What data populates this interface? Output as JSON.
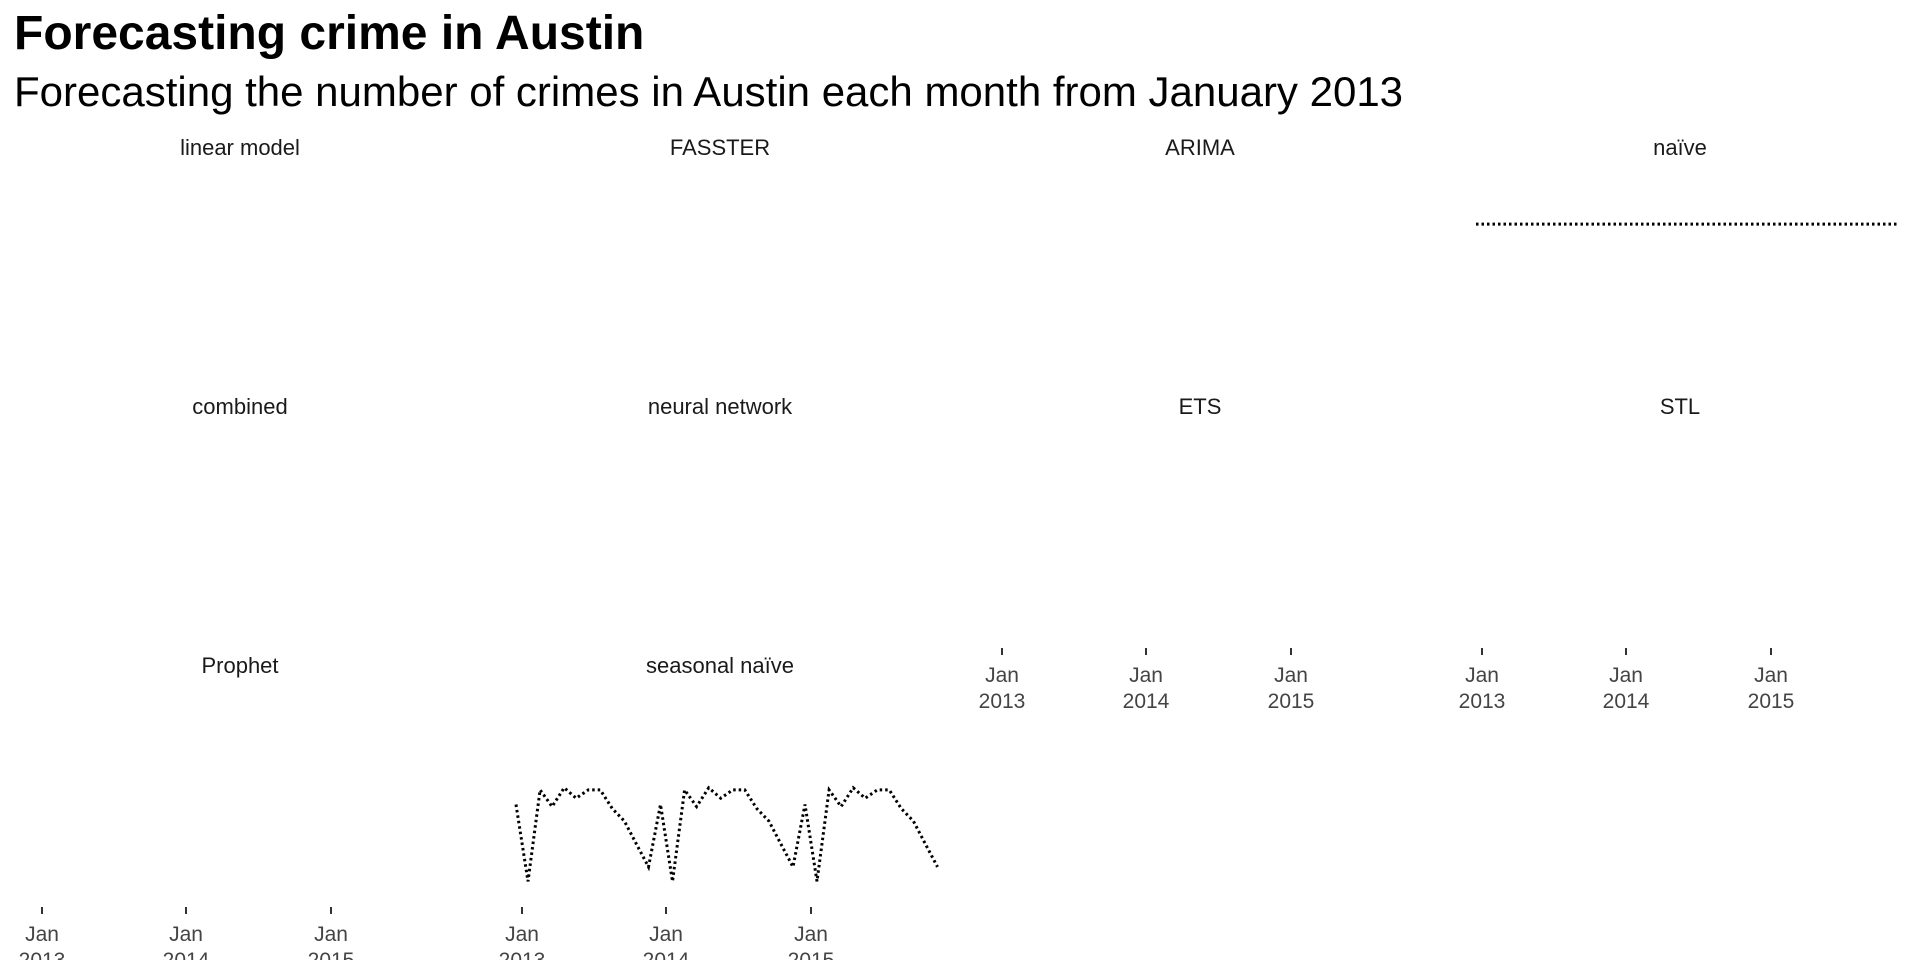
{
  "chart_data": {
    "type": "line",
    "title": "Forecasting crime in Austin",
    "subtitle": "Forecasting the number of crimes in Austin each month from January 2013",
    "xlabel": "",
    "ylabel": "",
    "x_tick_labels": [
      {
        "line1": "Jan",
        "line2": "2013"
      },
      {
        "line1": "Jan",
        "line2": "2014"
      },
      {
        "line1": "Jan",
        "line2": "2015"
      }
    ],
    "grid": false,
    "line_style": "dotted",
    "facets": [
      {
        "label": "linear model",
        "has_x_axis": false,
        "values": []
      },
      {
        "label": "FASSTER",
        "has_x_axis": false,
        "values": []
      },
      {
        "label": "ARIMA",
        "has_x_axis": false,
        "values": []
      },
      {
        "label": "naïve",
        "has_x_axis": false,
        "values": [
          0.14,
          0.14,
          0.14,
          0.14,
          0.14,
          0.14,
          0.14,
          0.14,
          0.14,
          0.14,
          0.14,
          0.14,
          0.14,
          0.14,
          0.14,
          0.14,
          0.14,
          0.14,
          0.14,
          0.14,
          0.14,
          0.14,
          0.14,
          0.14,
          0.14,
          0.14,
          0.14,
          0.14,
          0.14,
          0.14,
          0.14,
          0.14,
          0.14,
          0.14,
          0.14,
          0.14
        ]
      },
      {
        "label": "combined",
        "has_x_axis": false,
        "values": []
      },
      {
        "label": "neural network",
        "has_x_axis": false,
        "values": []
      },
      {
        "label": "ETS",
        "has_x_axis": true,
        "values": []
      },
      {
        "label": "STL",
        "has_x_axis": true,
        "values": []
      },
      {
        "label": "Prophet",
        "has_x_axis": true,
        "values": []
      },
      {
        "label": "seasonal naïve",
        "has_x_axis": true,
        "values": [
          -0.16,
          -0.53,
          -0.09,
          -0.17,
          -0.08,
          -0.13,
          -0.09,
          -0.09,
          -0.18,
          -0.24,
          -0.35,
          -0.46,
          -0.16,
          -0.53,
          -0.09,
          -0.17,
          -0.08,
          -0.13,
          -0.09,
          -0.09,
          -0.18,
          -0.24,
          -0.35,
          -0.46,
          -0.16,
          -0.53,
          -0.09,
          -0.17,
          -0.08,
          -0.13,
          -0.09,
          -0.09,
          -0.18,
          -0.24,
          -0.35,
          -0.46
        ]
      }
    ]
  }
}
